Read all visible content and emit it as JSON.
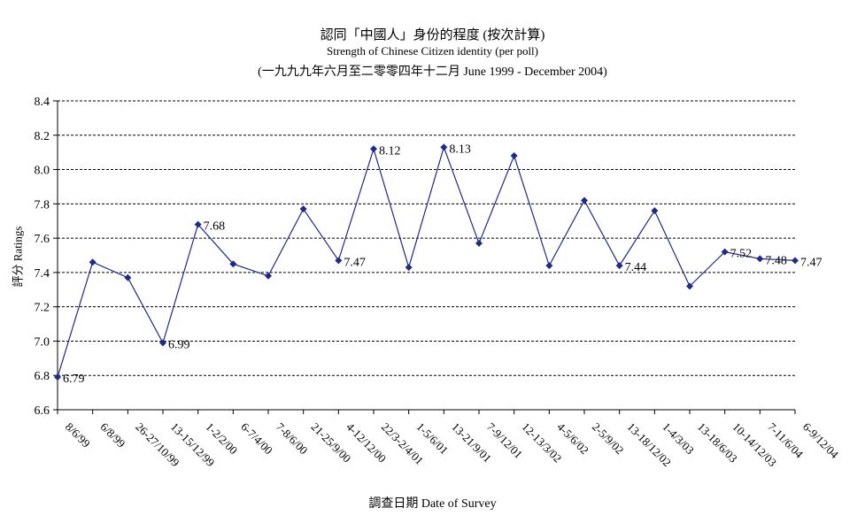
{
  "chart_data": {
    "type": "line",
    "title": "認同「中國人」身份的程度 (按次計算)",
    "subtitle": "Strength of Chinese Citizen identity (per poll)",
    "subtitle2": "(一九九九年六月至二零零四年十二月 June 1999 - December 2004)",
    "xlabel": "調查日期 Date of Survey",
    "ylabel": "評分 Ratings",
    "ylim": [
      6.6,
      8.4
    ],
    "yticks": [
      "6.6",
      "6.8",
      "7.0",
      "7.2",
      "7.4",
      "7.6",
      "7.8",
      "8.0",
      "8.2",
      "8.4"
    ],
    "grid": true,
    "line_color": "#1f2a8a",
    "categories": [
      "8/6/99",
      "6/8/99",
      "26-27/10/99",
      "13-15/12/99",
      "1-2/2/00",
      "6-7/4/00",
      "7-8/6/00",
      "21-25/9/00",
      "4-12/12/00",
      "22/3-2/4/01",
      "1-5/6/01",
      "13-21/9/01",
      "7-9/12/01",
      "12-13/3/02",
      "4-5/6/02",
      "2-5/9/02",
      "13-18/12/02",
      "1-4/3/03",
      "13-18/6/03",
      "10-14/12/03",
      "7-11/6/04",
      "6-9/12/04"
    ],
    "series": [
      {
        "values": [
          6.79,
          7.46,
          7.37,
          6.99,
          7.68,
          7.45,
          7.38,
          7.77,
          7.47,
          8.12,
          7.43,
          8.13,
          7.57,
          8.08,
          7.44,
          7.82,
          7.44,
          7.76,
          7.32,
          7.52,
          7.48,
          7.47
        ],
        "data_labels": [
          "6.79",
          "",
          "",
          "6.99",
          "7.68",
          "",
          "",
          "",
          "7.47",
          "8.12",
          "",
          "8.13",
          "",
          "",
          "",
          "",
          "7.44",
          "",
          "",
          "7.52",
          "7.48",
          "7.47"
        ]
      }
    ]
  }
}
